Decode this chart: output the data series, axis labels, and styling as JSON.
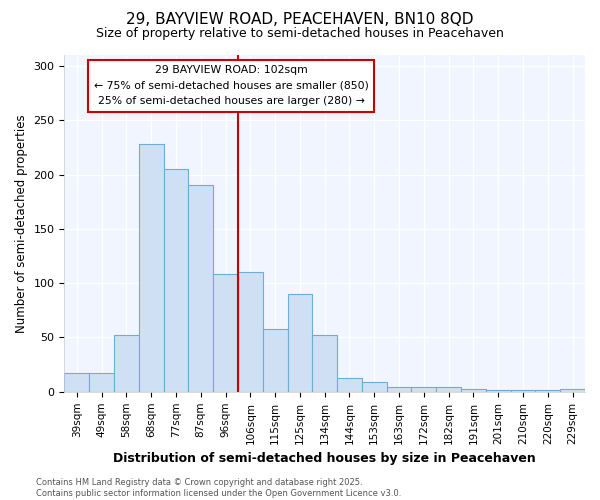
{
  "title": "29, BAYVIEW ROAD, PEACEHAVEN, BN10 8QD",
  "subtitle": "Size of property relative to semi-detached houses in Peacehaven",
  "xlabel": "Distribution of semi-detached houses by size in Peacehaven",
  "ylabel": "Number of semi-detached properties",
  "categories": [
    "39sqm",
    "49sqm",
    "58sqm",
    "68sqm",
    "77sqm",
    "87sqm",
    "96sqm",
    "106sqm",
    "115sqm",
    "125sqm",
    "134sqm",
    "144sqm",
    "153sqm",
    "163sqm",
    "172sqm",
    "182sqm",
    "191sqm",
    "201sqm",
    "210sqm",
    "220sqm",
    "229sqm"
  ],
  "values": [
    17,
    17,
    52,
    228,
    205,
    190,
    108,
    110,
    58,
    90,
    52,
    13,
    9,
    4,
    4,
    4,
    3,
    2,
    2,
    2,
    3
  ],
  "bar_color": "#cfe0f5",
  "bar_edge_color": "#6aaed6",
  "property_label": "29 BAYVIEW ROAD: 102sqm",
  "pct_smaller": 75,
  "n_smaller": 850,
  "pct_larger": 25,
  "n_larger": 280,
  "vline_x_index": 7.0,
  "ylim": [
    0,
    310
  ],
  "yticks": [
    0,
    50,
    100,
    150,
    200,
    250,
    300
  ],
  "background_color": "#ffffff",
  "plot_bg_color": "#f0f5ff",
  "grid_color": "#ffffff",
  "footer": "Contains HM Land Registry data © Crown copyright and database right 2025.\nContains public sector information licensed under the Open Government Licence v3.0.",
  "annotation_box_color": "#ffffff",
  "annotation_box_edge": "#cc0000",
  "vline_color": "#cc0000",
  "title_fontsize": 11,
  "subtitle_fontsize": 9
}
